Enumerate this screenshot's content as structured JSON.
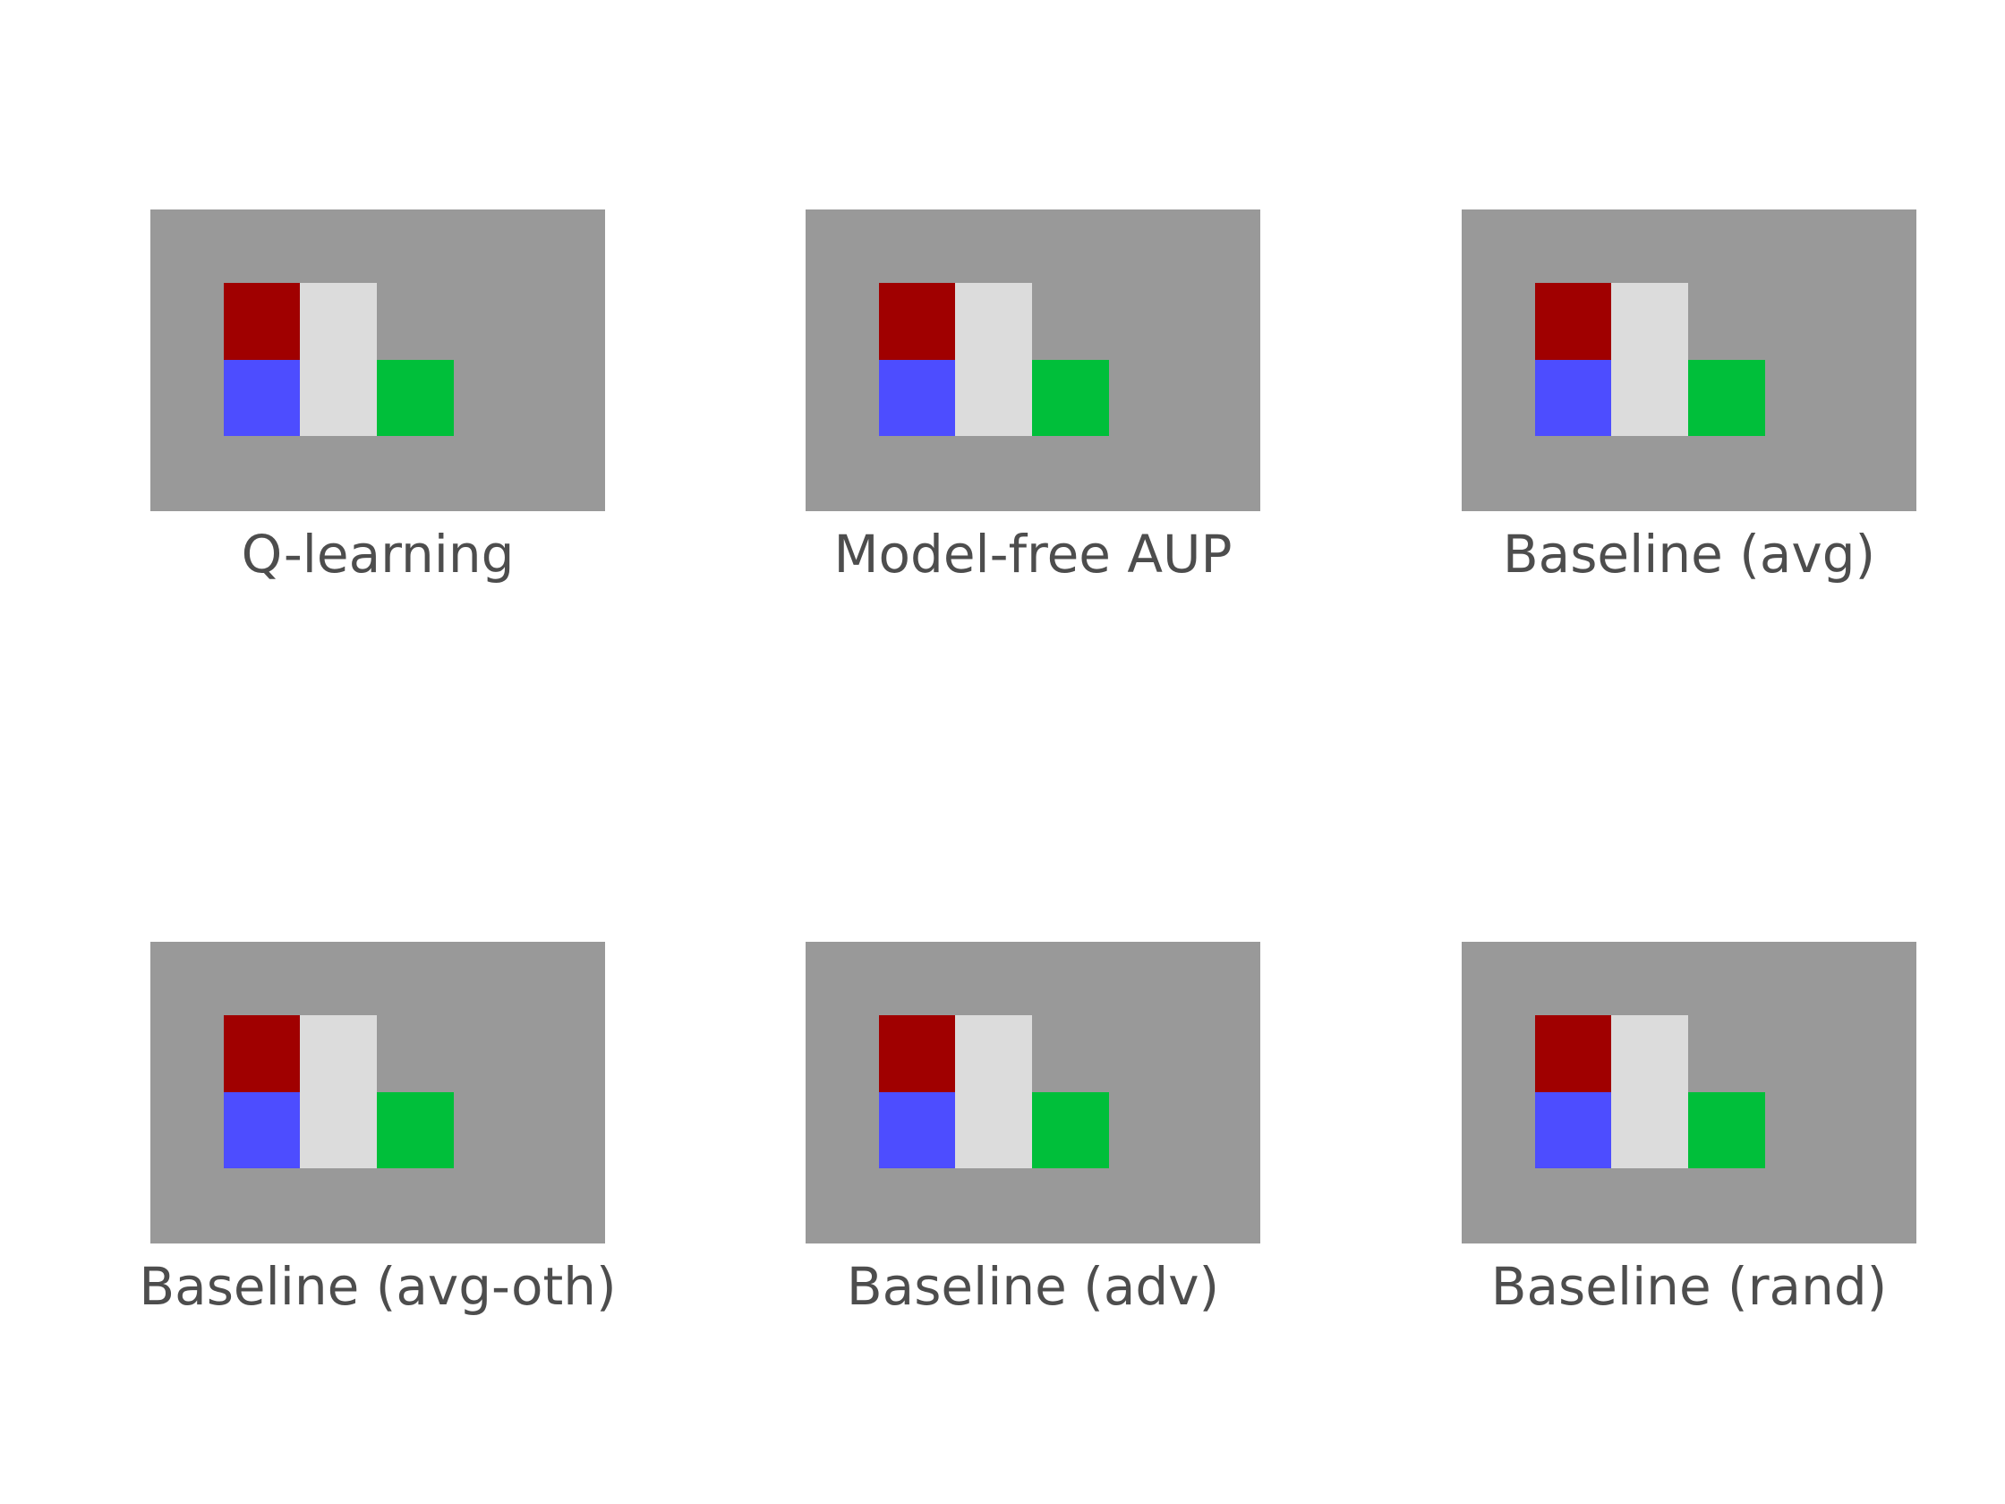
{
  "colors": {
    "wall": "#999999",
    "floor": "#dcdcdc",
    "agent": "#a00000",
    "box": "#4d4dff",
    "goal": "#00bf3a",
    "caption": "#4d4d4d"
  },
  "panels": [
    {
      "title": "Q-learning"
    },
    {
      "title": "Model-free AUP"
    },
    {
      "title": "Baseline (avg)"
    },
    {
      "title": "Baseline (avg-oth)"
    },
    {
      "title": "Baseline (adv)"
    },
    {
      "title": "Baseline (rand)"
    }
  ]
}
